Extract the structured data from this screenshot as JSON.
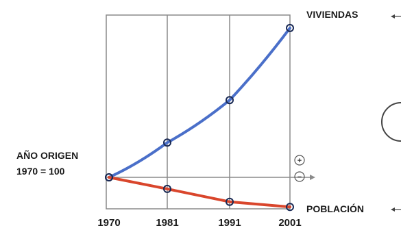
{
  "chart_data": {
    "type": "line",
    "title": "",
    "xlabel": "",
    "ylabel": "",
    "x": [
      "1970",
      "1981",
      "1991",
      "2001"
    ],
    "series": [
      {
        "name": "VIVIENDAS",
        "values": [
          100,
          127,
          160,
          216
        ],
        "color": "#4a6fc9"
      },
      {
        "name": "POBLACIÓN",
        "values": [
          100,
          91,
          81,
          77
        ],
        "color": "#d9462c"
      }
    ],
    "ylim": [
      75,
      225
    ],
    "baseline": 100,
    "grid": true,
    "origin_annotation": [
      "AÑO ORIGEN",
      "1970 = 100"
    ],
    "signs": {
      "plus": "+",
      "minus": "−"
    },
    "point_marker": "circle",
    "arrow_icon": "arrow-left-icon"
  }
}
